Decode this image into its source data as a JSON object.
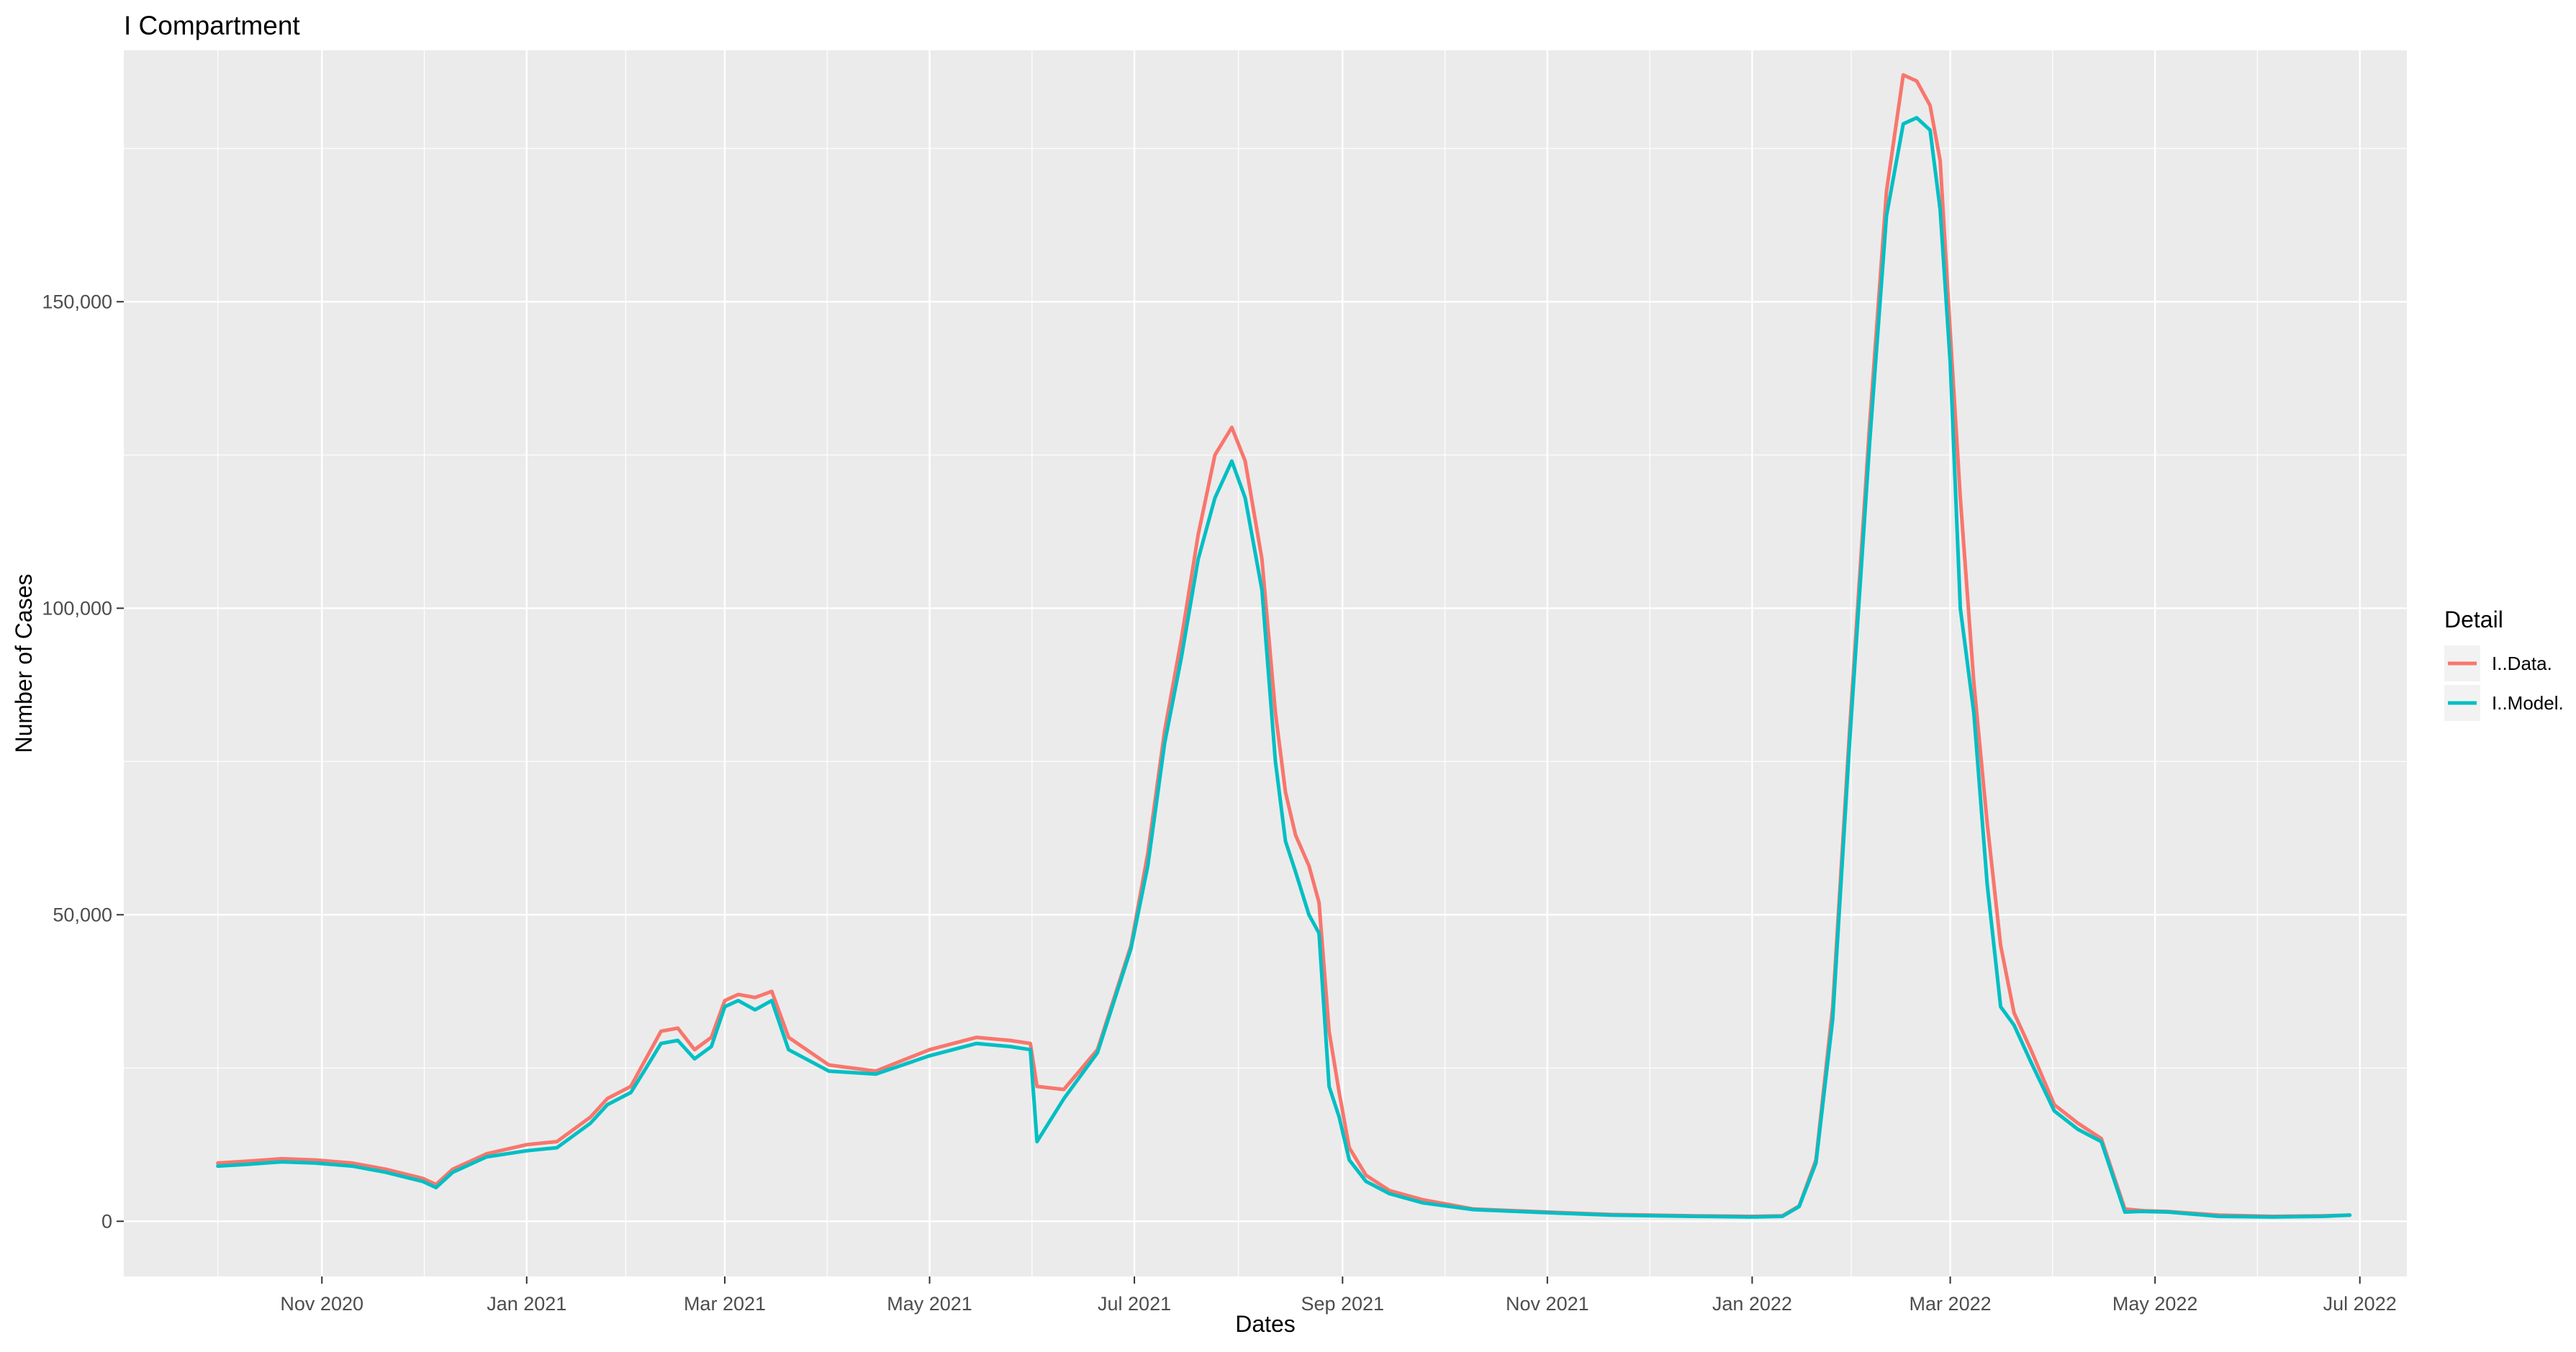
{
  "chart_data": {
    "type": "line",
    "title": "I Compartment",
    "xlabel": "Dates",
    "ylabel": "Number of Cases",
    "x_axis_type": "date",
    "xlim": [
      "2020-09-03",
      "2022-07-15"
    ],
    "ylim": [
      -9000,
      191000
    ],
    "x_ticks": [
      {
        "date": "2020-11-01",
        "label": "Nov 2020"
      },
      {
        "date": "2021-01-01",
        "label": "Jan 2021"
      },
      {
        "date": "2021-03-01",
        "label": "Mar 2021"
      },
      {
        "date": "2021-05-01",
        "label": "May 2021"
      },
      {
        "date": "2021-07-01",
        "label": "Jul 2021"
      },
      {
        "date": "2021-09-01",
        "label": "Sep 2021"
      },
      {
        "date": "2021-11-01",
        "label": "Nov 2021"
      },
      {
        "date": "2022-01-01",
        "label": "Jan 2022"
      },
      {
        "date": "2022-03-01",
        "label": "Mar 2022"
      },
      {
        "date": "2022-05-01",
        "label": "May 2022"
      },
      {
        "date": "2022-07-01",
        "label": "Jul 2022"
      }
    ],
    "y_ticks": [
      {
        "value": 0,
        "label": "0"
      },
      {
        "value": 50000,
        "label": "50,000"
      },
      {
        "value": 100000,
        "label": "100,000"
      },
      {
        "value": 150000,
        "label": "150,000"
      }
    ],
    "grid": true,
    "panel_background": "#ebebeb",
    "grid_color": "#ffffff",
    "legend": {
      "title": "Detail",
      "position": "right"
    },
    "series": [
      {
        "name": "I..Data.",
        "color": "#F8766D",
        "x": [
          "2020-10-01",
          "2020-10-10",
          "2020-10-20",
          "2020-10-30",
          "2020-11-10",
          "2020-11-20",
          "2020-12-01",
          "2020-12-05",
          "2020-12-10",
          "2020-12-20",
          "2021-01-01",
          "2021-01-10",
          "2021-01-20",
          "2021-01-25",
          "2021-02-01",
          "2021-02-05",
          "2021-02-10",
          "2021-02-15",
          "2021-02-20",
          "2021-02-25",
          "2021-03-01",
          "2021-03-05",
          "2021-03-10",
          "2021-03-15",
          "2021-03-20",
          "2021-04-01",
          "2021-04-15",
          "2021-05-01",
          "2021-05-15",
          "2021-05-25",
          "2021-05-31",
          "2021-06-02",
          "2021-06-10",
          "2021-06-20",
          "2021-06-30",
          "2021-07-05",
          "2021-07-10",
          "2021-07-15",
          "2021-07-20",
          "2021-07-25",
          "2021-07-30",
          "2021-08-03",
          "2021-08-08",
          "2021-08-12",
          "2021-08-15",
          "2021-08-18",
          "2021-08-22",
          "2021-08-25",
          "2021-08-28",
          "2021-08-31",
          "2021-09-03",
          "2021-09-08",
          "2021-09-15",
          "2021-09-25",
          "2021-10-10",
          "2021-11-01",
          "2021-11-20",
          "2021-12-15",
          "2022-01-01",
          "2022-01-10",
          "2022-01-15",
          "2022-01-20",
          "2022-01-25",
          "2022-01-30",
          "2022-02-05",
          "2022-02-10",
          "2022-02-15",
          "2022-02-19",
          "2022-02-23",
          "2022-02-26",
          "2022-03-01",
          "2022-03-04",
          "2022-03-08",
          "2022-03-12",
          "2022-03-16",
          "2022-03-20",
          "2022-03-25",
          "2022-04-01",
          "2022-04-08",
          "2022-04-15",
          "2022-04-22",
          "2022-04-26",
          "2022-04-28",
          "2022-05-05",
          "2022-05-20",
          "2022-06-05",
          "2022-06-20",
          "2022-06-28"
        ],
        "y": [
          9500,
          9800,
          10200,
          10000,
          9500,
          8500,
          7000,
          6000,
          8500,
          11000,
          12500,
          13000,
          17000,
          20000,
          22000,
          26000,
          31000,
          31500,
          28000,
          30000,
          36000,
          37000,
          36500,
          37500,
          30000,
          25500,
          24500,
          28000,
          30000,
          29500,
          29000,
          22000,
          21500,
          28000,
          45000,
          60000,
          80000,
          95000,
          112000,
          125000,
          129500,
          124000,
          108000,
          83000,
          70000,
          63000,
          58000,
          52000,
          31000,
          21000,
          12000,
          7500,
          5000,
          3500,
          2000,
          1500,
          1100,
          900,
          800,
          900,
          2500,
          10000,
          35000,
          80000,
          130000,
          168000,
          187000,
          186000,
          182000,
          173000,
          145000,
          118000,
          88000,
          65000,
          45000,
          34000,
          28000,
          19000,
          16000,
          13500,
          2000,
          1800,
          1700,
          1600,
          1000,
          800,
          900,
          1000
        ]
      },
      {
        "name": "I..Model.",
        "color": "#00BFC4",
        "x": [
          "2020-10-01",
          "2020-10-10",
          "2020-10-20",
          "2020-10-30",
          "2020-11-10",
          "2020-11-20",
          "2020-12-01",
          "2020-12-05",
          "2020-12-10",
          "2020-12-20",
          "2021-01-01",
          "2021-01-10",
          "2021-01-20",
          "2021-01-25",
          "2021-02-01",
          "2021-02-05",
          "2021-02-10",
          "2021-02-15",
          "2021-02-20",
          "2021-02-25",
          "2021-03-01",
          "2021-03-05",
          "2021-03-10",
          "2021-03-15",
          "2021-03-20",
          "2021-04-01",
          "2021-04-15",
          "2021-05-01",
          "2021-05-15",
          "2021-05-25",
          "2021-05-31",
          "2021-06-02",
          "2021-06-10",
          "2021-06-20",
          "2021-06-30",
          "2021-07-05",
          "2021-07-10",
          "2021-07-15",
          "2021-07-20",
          "2021-07-25",
          "2021-07-30",
          "2021-08-03",
          "2021-08-08",
          "2021-08-12",
          "2021-08-15",
          "2021-08-18",
          "2021-08-22",
          "2021-08-25",
          "2021-08-28",
          "2021-08-31",
          "2021-09-03",
          "2021-09-08",
          "2021-09-15",
          "2021-09-25",
          "2021-10-10",
          "2021-11-01",
          "2021-11-20",
          "2021-12-15",
          "2022-01-01",
          "2022-01-10",
          "2022-01-15",
          "2022-01-20",
          "2022-01-25",
          "2022-01-30",
          "2022-02-05",
          "2022-02-10",
          "2022-02-15",
          "2022-02-19",
          "2022-02-23",
          "2022-02-26",
          "2022-03-01",
          "2022-03-04",
          "2022-03-08",
          "2022-03-12",
          "2022-03-16",
          "2022-03-20",
          "2022-03-25",
          "2022-04-01",
          "2022-04-08",
          "2022-04-15",
          "2022-04-22",
          "2022-04-26",
          "2022-04-28",
          "2022-05-05",
          "2022-05-20",
          "2022-06-05",
          "2022-06-20",
          "2022-06-28"
        ],
        "y": [
          9000,
          9300,
          9700,
          9500,
          9000,
          8000,
          6500,
          5500,
          8000,
          10500,
          11500,
          12000,
          16000,
          19000,
          21000,
          24500,
          29000,
          29500,
          26500,
          28500,
          35000,
          36000,
          34500,
          36000,
          28000,
          24500,
          24000,
          27000,
          29000,
          28500,
          28000,
          13000,
          20000,
          27500,
          44500,
          58000,
          78000,
          92000,
          108000,
          118000,
          124000,
          118000,
          103000,
          75000,
          62000,
          57000,
          50000,
          47000,
          22000,
          17000,
          10000,
          6500,
          4500,
          3000,
          1900,
          1400,
          1000,
          800,
          700,
          800,
          2400,
          9500,
          33000,
          78000,
          127000,
          164000,
          179000,
          180000,
          178000,
          165000,
          140000,
          100000,
          83000,
          55000,
          35000,
          32000,
          26000,
          18000,
          15000,
          13000,
          1500,
          1600,
          1600,
          1500,
          800,
          700,
          800,
          1000
        ]
      }
    ]
  }
}
